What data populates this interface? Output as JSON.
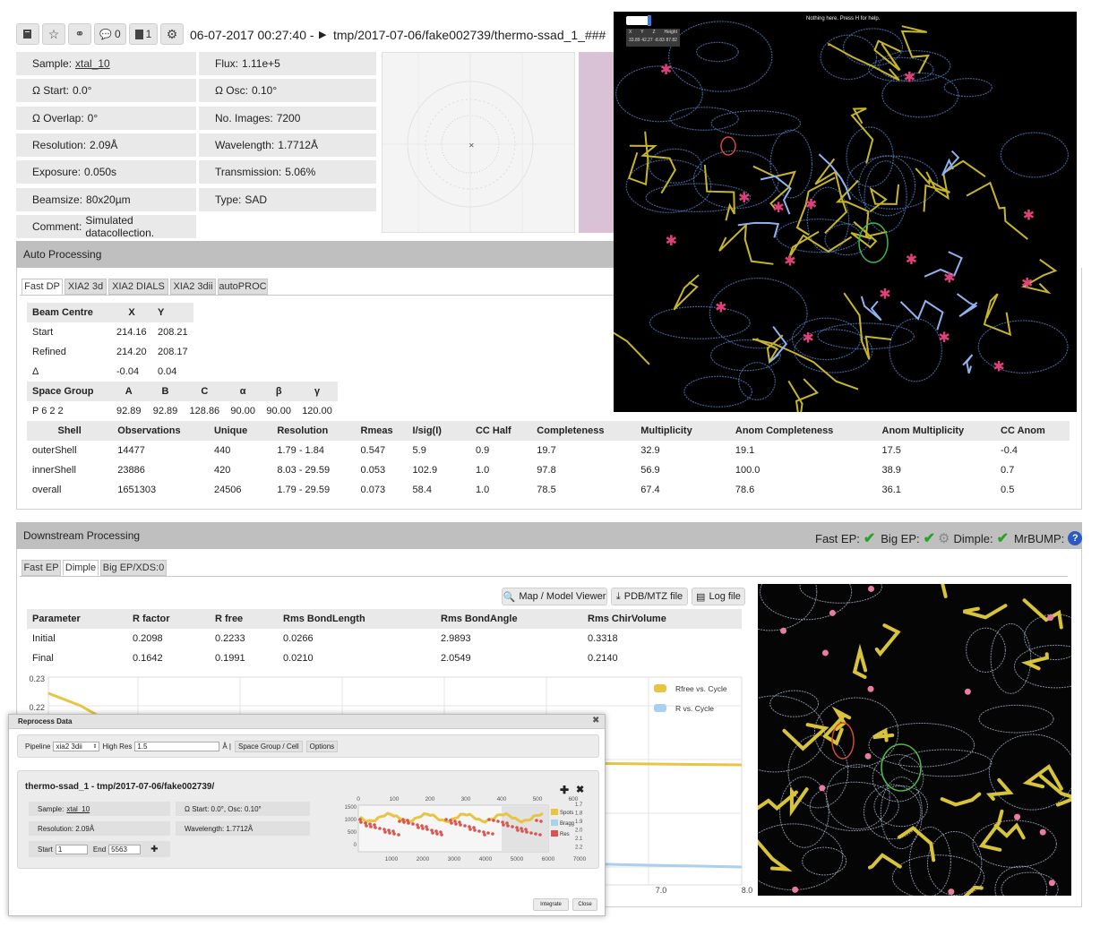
{
  "header": {
    "comments_count": "0",
    "files_count": "1",
    "datetime": "06-07-2017 00:27:40 -",
    "path": "tmp/2017-07-06/fake002739/thermo-ssad_1_###"
  },
  "info": {
    "left": [
      {
        "label": "Sample:",
        "value": "xtal_10"
      },
      {
        "label": "Ω Start:",
        "value": "0.0°"
      },
      {
        "label": "Ω Overlap:",
        "value": "0°"
      },
      {
        "label": "Resolution:",
        "value": "2.09Å"
      },
      {
        "label": "Exposure:",
        "value": "0.050s"
      },
      {
        "label": "Beamsize:",
        "value": "80x20µm"
      },
      {
        "label": "Comment:",
        "value": "Simulated datacollection."
      }
    ],
    "right": [
      {
        "label": "Flux:",
        "value": "1.11e+5"
      },
      {
        "label": "Ω Osc:",
        "value": "0.10°"
      },
      {
        "label": "No. Images:",
        "value": "7200"
      },
      {
        "label": "Wavelength:",
        "value": "1.7712Å"
      },
      {
        "label": "Transmission:",
        "value": "5.06%"
      },
      {
        "label": "Type:",
        "value": "SAD"
      }
    ]
  },
  "auto_processing": {
    "title": "Auto Processing",
    "tabs": [
      "Fast DP",
      "XIA2 3d",
      "XIA2 DIALS",
      "XIA2 3dii",
      "autoPROC"
    ],
    "beam": {
      "headers": [
        "Beam Centre",
        "X",
        "Y"
      ],
      "rows": [
        [
          "Start",
          "214.16",
          "208.21"
        ],
        [
          "Refined",
          "214.20",
          "208.17"
        ],
        [
          "Δ",
          "-0.04",
          "0.04"
        ]
      ]
    },
    "cell": {
      "headers": [
        "Space Group",
        "A",
        "B",
        "C",
        "α",
        "β",
        "γ"
      ],
      "row": [
        "P 6 2 2",
        "92.89",
        "92.89",
        "128.86",
        "90.00",
        "90.00",
        "120.00"
      ]
    },
    "shells": {
      "headers": [
        "Shell",
        "Observations",
        "Unique",
        "Resolution",
        "Rmeas",
        "I/sig(I)",
        "CC Half",
        "Completeness",
        "Multiplicity",
        "Anom Completeness",
        "Anom Multiplicity",
        "CC Anom"
      ],
      "rows": [
        [
          "outerShell",
          "14477",
          "440",
          "1.79 - 1.84",
          "0.547",
          "5.9",
          "0.9",
          "19.7",
          "32.9",
          "19.1",
          "17.5",
          "-0.4"
        ],
        [
          "innerShell",
          "23886",
          "420",
          "8.03 - 29.59",
          "0.053",
          "102.9",
          "1.0",
          "97.8",
          "56.9",
          "100.0",
          "38.9",
          "0.7"
        ],
        [
          "overall",
          "1651303",
          "24506",
          "1.79 - 29.59",
          "0.073",
          "58.4",
          "1.0",
          "78.5",
          "67.4",
          "78.6",
          "36.1",
          "0.5"
        ]
      ]
    }
  },
  "downstream": {
    "title": "Downstream Processing",
    "status": {
      "fast_ep": "Fast EP:",
      "big_ep": "Big EP:",
      "dimple": "Dimple:",
      "mrbump": "MrBUMP:"
    },
    "tabs": [
      "Fast EP",
      "Dimple",
      "Big EP/XDS:0"
    ],
    "buttons": {
      "map_viewer": "Map / Model Viewer",
      "pdb_mtz": "PDB/MTZ file",
      "log": "Log file"
    },
    "refine": {
      "headers": [
        "Parameter",
        "R factor",
        "R free",
        "Rms BondLength",
        "Rms BondAngle",
        "Rms ChirVolume"
      ],
      "rows": [
        [
          "Initial",
          "0.2098",
          "0.2233",
          "0.0266",
          "2.9893",
          "0.3318"
        ],
        [
          "Final",
          "0.1642",
          "0.1991",
          "0.0210",
          "2.0549",
          "0.2140"
        ]
      ]
    }
  },
  "viewer": {
    "help": "Nothing here. Press H for help.",
    "coords_header": [
      "X",
      "Y",
      "Z",
      "Height"
    ],
    "coords": [
      "33.89",
      "42.27",
      "-8.83",
      "87.82"
    ]
  },
  "reprocess": {
    "title": "Reprocess Data",
    "pipeline_label": "Pipeline",
    "pipeline_value": "xia2 3dii",
    "high_res_label": "High Res",
    "high_res_value": "1.5",
    "angstrom": "Å |",
    "sg_button": "Space Group / Cell",
    "options_button": "Options",
    "dataset_title": "thermo-ssad_1 - tmp/2017-07-06/fake002739/",
    "sample_label": "Sample:",
    "sample_value": "xtal_10",
    "osc_text": "Ω Start: 0.0°, Osc: 0.10°",
    "resolution_text": "Resolution: 2.09Å",
    "wavelength_text": "Wavelength: 1.7712Å",
    "start_label": "Start",
    "start_value": "1",
    "end_label": "End",
    "end_value": "5563",
    "integrate": "Integrate",
    "close": "Close"
  },
  "chart_data": [
    {
      "type": "line",
      "yticks": [
        "0.23",
        "0.22"
      ],
      "xticks": [
        "7.0",
        "8.0"
      ],
      "series": [
        {
          "name": "Rfree vs. Cycle",
          "color": "#e8c440"
        },
        {
          "name": "R vs. Cycle",
          "color": "#a9d0ee"
        }
      ]
    },
    {
      "type": "scatter",
      "x_top_ticks": [
        "0",
        "100",
        "200",
        "300",
        "400",
        "500",
        "600"
      ],
      "x_bottom_ticks": [
        "1000",
        "2000",
        "3000",
        "4000",
        "5000",
        "6000",
        "7000"
      ],
      "y_left_ticks": [
        "1500",
        "1000",
        "500",
        "0"
      ],
      "y_right_ticks": [
        "1.7",
        "1.8",
        "1.9",
        "2.0",
        "2.1",
        "2.2"
      ],
      "legend": [
        {
          "name": "Spots",
          "color": "#e8c440"
        },
        {
          "name": "Bragg",
          "color": "#a9d0ee"
        },
        {
          "name": "Res",
          "color": "#d9534f"
        }
      ]
    }
  ]
}
